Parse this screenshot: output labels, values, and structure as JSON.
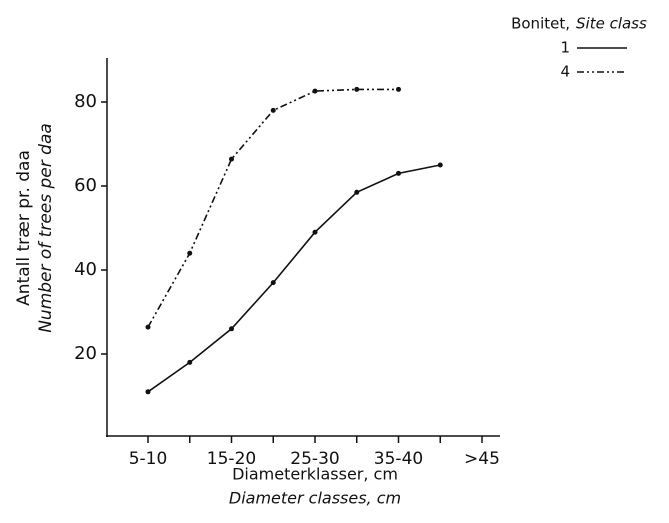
{
  "chart_data": {
    "type": "line",
    "y_label": [
      "Antall trær pr. daa",
      "Number of trees per daa"
    ],
    "x_label": [
      "Diameterklasser, cm",
      "Diameter classes, cm"
    ],
    "legend_title": [
      "Bonitet,",
      "Site class"
    ],
    "legend_position": "top-right",
    "categories": [
      "5-10",
      null,
      "15-20",
      null,
      "25-30",
      null,
      "35-40",
      null,
      ">45"
    ],
    "series": [
      {
        "name": "1",
        "color": "#111111",
        "dash": "solid",
        "values": [
          11,
          18,
          26,
          37,
          49,
          58.5,
          63,
          65,
          null
        ]
      },
      {
        "name": "4",
        "color": "#111111",
        "dash": "dash-dot-dot",
        "values": [
          26.4,
          44,
          66.4,
          78,
          82.6,
          83,
          83,
          null,
          null
        ]
      }
    ],
    "ylim": [
      0,
      90
    ],
    "yticks": [
      20,
      40,
      60,
      80
    ],
    "grid": false
  }
}
